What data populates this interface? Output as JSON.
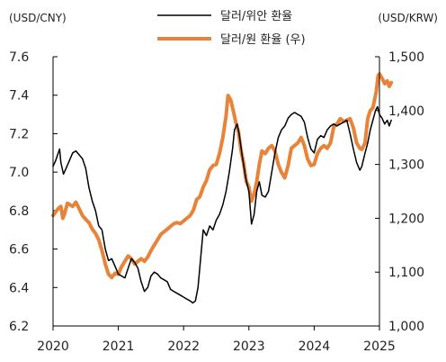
{
  "chart_data": {
    "type": "line",
    "left_axis_label": "(USD/CNY)",
    "right_axis_label": "(USD/KRW)",
    "left_ylim": [
      6.2,
      7.6
    ],
    "right_ylim": [
      1000,
      1500
    ],
    "left_ticks": [
      "7.6",
      "7.4",
      "7.2",
      "7.0",
      "6.8",
      "6.6",
      "6.4",
      "6.2"
    ],
    "right_ticks": [
      "1,500",
      "1,400",
      "1,300",
      "1,200",
      "1,100",
      "1,000"
    ],
    "x_ticks": [
      "2020",
      "2021",
      "2022",
      "2023",
      "2024",
      "2025"
    ],
    "xlim": [
      2020,
      2025
    ],
    "grid": false,
    "legend_position": "top-center",
    "series": [
      {
        "name": "달러/위안 환율",
        "axis": "left",
        "color": "#000000",
        "points": [
          [
            2020.0,
            7.03
          ],
          [
            2020.04,
            7.06
          ],
          [
            2020.08,
            7.1
          ],
          [
            2020.1,
            7.12
          ],
          [
            2020.12,
            7.05
          ],
          [
            2020.16,
            6.99
          ],
          [
            2020.2,
            7.02
          ],
          [
            2020.25,
            7.06
          ],
          [
            2020.3,
            7.1
          ],
          [
            2020.35,
            7.11
          ],
          [
            2020.4,
            7.09
          ],
          [
            2020.45,
            7.07
          ],
          [
            2020.5,
            7.02
          ],
          [
            2020.55,
            6.92
          ],
          [
            2020.6,
            6.85
          ],
          [
            2020.65,
            6.8
          ],
          [
            2020.7,
            6.72
          ],
          [
            2020.75,
            6.7
          ],
          [
            2020.8,
            6.6
          ],
          [
            2020.85,
            6.54
          ],
          [
            2020.9,
            6.55
          ],
          [
            2020.95,
            6.51
          ],
          [
            2021.0,
            6.47
          ],
          [
            2021.05,
            6.46
          ],
          [
            2021.1,
            6.45
          ],
          [
            2021.15,
            6.5
          ],
          [
            2021.2,
            6.55
          ],
          [
            2021.25,
            6.53
          ],
          [
            2021.3,
            6.5
          ],
          [
            2021.35,
            6.43
          ],
          [
            2021.4,
            6.38
          ],
          [
            2021.45,
            6.4
          ],
          [
            2021.5,
            6.46
          ],
          [
            2021.55,
            6.48
          ],
          [
            2021.6,
            6.47
          ],
          [
            2021.65,
            6.45
          ],
          [
            2021.7,
            6.44
          ],
          [
            2021.75,
            6.43
          ],
          [
            2021.8,
            6.39
          ],
          [
            2021.85,
            6.38
          ],
          [
            2021.9,
            6.37
          ],
          [
            2021.95,
            6.36
          ],
          [
            2022.0,
            6.35
          ],
          [
            2022.05,
            6.34
          ],
          [
            2022.1,
            6.33
          ],
          [
            2022.14,
            6.32
          ],
          [
            2022.18,
            6.33
          ],
          [
            2022.22,
            6.4
          ],
          [
            2022.26,
            6.55
          ],
          [
            2022.3,
            6.7
          ],
          [
            2022.35,
            6.67
          ],
          [
            2022.4,
            6.72
          ],
          [
            2022.45,
            6.7
          ],
          [
            2022.5,
            6.75
          ],
          [
            2022.55,
            6.78
          ],
          [
            2022.6,
            6.83
          ],
          [
            2022.65,
            6.9
          ],
          [
            2022.7,
            7.0
          ],
          [
            2022.75,
            7.12
          ],
          [
            2022.78,
            7.22
          ],
          [
            2022.82,
            7.25
          ],
          [
            2022.85,
            7.2
          ],
          [
            2022.9,
            7.08
          ],
          [
            2022.95,
            6.97
          ],
          [
            2023.0,
            6.9
          ],
          [
            2023.04,
            6.73
          ],
          [
            2023.08,
            6.78
          ],
          [
            2023.12,
            6.9
          ],
          [
            2023.16,
            6.95
          ],
          [
            2023.2,
            6.88
          ],
          [
            2023.25,
            6.87
          ],
          [
            2023.3,
            6.9
          ],
          [
            2023.35,
            7.0
          ],
          [
            2023.4,
            7.1
          ],
          [
            2023.45,
            7.18
          ],
          [
            2023.5,
            7.22
          ],
          [
            2023.55,
            7.24
          ],
          [
            2023.6,
            7.28
          ],
          [
            2023.65,
            7.3
          ],
          [
            2023.7,
            7.31
          ],
          [
            2023.75,
            7.3
          ],
          [
            2023.8,
            7.29
          ],
          [
            2023.85,
            7.26
          ],
          [
            2023.9,
            7.18
          ],
          [
            2023.95,
            7.12
          ],
          [
            2024.0,
            7.1
          ],
          [
            2024.05,
            7.17
          ],
          [
            2024.1,
            7.19
          ],
          [
            2024.15,
            7.18
          ],
          [
            2024.2,
            7.22
          ],
          [
            2024.25,
            7.24
          ],
          [
            2024.3,
            7.25
          ],
          [
            2024.35,
            7.24
          ],
          [
            2024.4,
            7.25
          ],
          [
            2024.45,
            7.26
          ],
          [
            2024.5,
            7.27
          ],
          [
            2024.55,
            7.2
          ],
          [
            2024.6,
            7.12
          ],
          [
            2024.65,
            7.05
          ],
          [
            2024.7,
            7.01
          ],
          [
            2024.73,
            7.03
          ],
          [
            2024.78,
            7.1
          ],
          [
            2024.82,
            7.15
          ],
          [
            2024.86,
            7.22
          ],
          [
            2024.9,
            7.27
          ],
          [
            2024.94,
            7.32
          ],
          [
            2024.97,
            7.34
          ],
          [
            2025.0,
            7.3
          ],
          [
            2025.04,
            7.28
          ],
          [
            2025.08,
            7.25
          ],
          [
            2025.12,
            7.27
          ],
          [
            2025.15,
            7.24
          ],
          [
            2025.18,
            7.27
          ]
        ]
      },
      {
        "name": "달러/원 환율 (우)",
        "axis": "right",
        "color": "#E8833A",
        "points": [
          [
            2020.0,
            1205
          ],
          [
            2020.04,
            1212
          ],
          [
            2020.08,
            1218
          ],
          [
            2020.12,
            1222
          ],
          [
            2020.15,
            1200
          ],
          [
            2020.18,
            1210
          ],
          [
            2020.22,
            1228
          ],
          [
            2020.26,
            1225
          ],
          [
            2020.3,
            1222
          ],
          [
            2020.35,
            1230
          ],
          [
            2020.4,
            1218
          ],
          [
            2020.45,
            1205
          ],
          [
            2020.5,
            1198
          ],
          [
            2020.55,
            1192
          ],
          [
            2020.6,
            1180
          ],
          [
            2020.65,
            1172
          ],
          [
            2020.7,
            1160
          ],
          [
            2020.75,
            1140
          ],
          [
            2020.8,
            1115
          ],
          [
            2020.85,
            1096
          ],
          [
            2020.9,
            1090
          ],
          [
            2020.95,
            1098
          ],
          [
            2021.0,
            1096
          ],
          [
            2021.05,
            1110
          ],
          [
            2021.1,
            1120
          ],
          [
            2021.15,
            1130
          ],
          [
            2021.2,
            1125
          ],
          [
            2021.25,
            1115
          ],
          [
            2021.3,
            1120
          ],
          [
            2021.35,
            1125
          ],
          [
            2021.4,
            1120
          ],
          [
            2021.45,
            1128
          ],
          [
            2021.5,
            1140
          ],
          [
            2021.55,
            1150
          ],
          [
            2021.6,
            1160
          ],
          [
            2021.65,
            1170
          ],
          [
            2021.7,
            1175
          ],
          [
            2021.75,
            1180
          ],
          [
            2021.8,
            1185
          ],
          [
            2021.85,
            1190
          ],
          [
            2021.9,
            1192
          ],
          [
            2021.95,
            1190
          ],
          [
            2022.0,
            1195
          ],
          [
            2022.05,
            1200
          ],
          [
            2022.1,
            1205
          ],
          [
            2022.15,
            1215
          ],
          [
            2022.2,
            1235
          ],
          [
            2022.25,
            1240
          ],
          [
            2022.3,
            1258
          ],
          [
            2022.35,
            1270
          ],
          [
            2022.4,
            1290
          ],
          [
            2022.45,
            1298
          ],
          [
            2022.5,
            1300
          ],
          [
            2022.55,
            1320
          ],
          [
            2022.6,
            1350
          ],
          [
            2022.65,
            1390
          ],
          [
            2022.68,
            1428
          ],
          [
            2022.72,
            1420
          ],
          [
            2022.76,
            1400
          ],
          [
            2022.8,
            1378
          ],
          [
            2022.84,
            1360
          ],
          [
            2022.88,
            1325
          ],
          [
            2022.92,
            1302
          ],
          [
            2022.96,
            1268
          ],
          [
            2023.0,
            1258
          ],
          [
            2023.04,
            1232
          ],
          [
            2023.08,
            1245
          ],
          [
            2023.12,
            1268
          ],
          [
            2023.16,
            1300
          ],
          [
            2023.2,
            1325
          ],
          [
            2023.25,
            1320
          ],
          [
            2023.3,
            1330
          ],
          [
            2023.35,
            1335
          ],
          [
            2023.4,
            1325
          ],
          [
            2023.45,
            1300
          ],
          [
            2023.5,
            1285
          ],
          [
            2023.55,
            1275
          ],
          [
            2023.6,
            1298
          ],
          [
            2023.65,
            1330
          ],
          [
            2023.7,
            1335
          ],
          [
            2023.75,
            1340
          ],
          [
            2023.8,
            1350
          ],
          [
            2023.85,
            1335
          ],
          [
            2023.9,
            1310
          ],
          [
            2023.95,
            1298
          ],
          [
            2024.0,
            1300
          ],
          [
            2024.05,
            1320
          ],
          [
            2024.1,
            1330
          ],
          [
            2024.15,
            1335
          ],
          [
            2024.2,
            1330
          ],
          [
            2024.25,
            1340
          ],
          [
            2024.3,
            1370
          ],
          [
            2024.35,
            1375
          ],
          [
            2024.4,
            1385
          ],
          [
            2024.45,
            1380
          ],
          [
            2024.5,
            1382
          ],
          [
            2024.55,
            1385
          ],
          [
            2024.6,
            1368
          ],
          [
            2024.65,
            1340
          ],
          [
            2024.7,
            1330
          ],
          [
            2024.73,
            1328
          ],
          [
            2024.78,
            1340
          ],
          [
            2024.82,
            1385
          ],
          [
            2024.86,
            1400
          ],
          [
            2024.9,
            1405
          ],
          [
            2024.95,
            1435
          ],
          [
            2024.98,
            1465
          ],
          [
            2025.0,
            1468
          ],
          [
            2025.04,
            1460
          ],
          [
            2025.08,
            1450
          ],
          [
            2025.12,
            1455
          ],
          [
            2025.15,
            1445
          ],
          [
            2025.18,
            1452
          ]
        ]
      }
    ]
  }
}
